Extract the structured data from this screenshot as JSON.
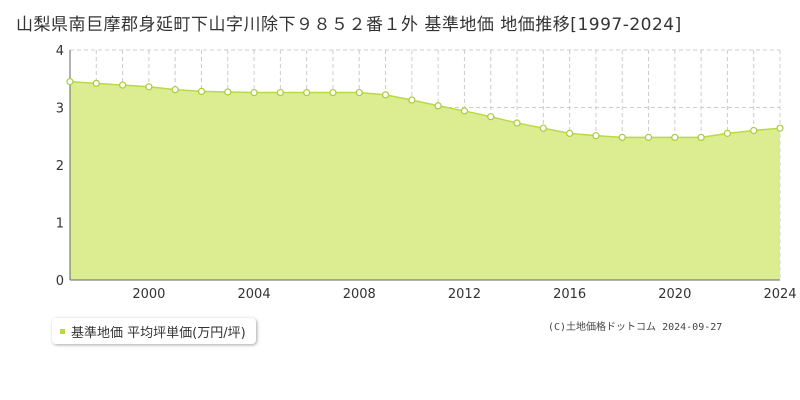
{
  "header": {
    "title": "山梨県南巨摩郡身延町下山字川除下９８５２番１外 基準地価 地価推移[1997-2024]"
  },
  "legend": {
    "label": "基準地価 平均坪単価(万円/坪)"
  },
  "credit": {
    "text": "(C)土地価格ドットコム 2024-09-27"
  },
  "colors": {
    "fill": "#dcec91",
    "line": "#b8d94a",
    "marker_stroke": "#a8cc3c",
    "marker_fill": "#ffffff",
    "grid": "#cccccc",
    "axis": "#666666"
  },
  "chart_data": {
    "type": "area",
    "title": "山梨県南巨摩郡身延町下山字川除下９８５２番１外 基準地価 地価推移[1997-2024]",
    "xlabel": "",
    "ylabel": "",
    "x_range": [
      1997,
      2024
    ],
    "ylim": [
      0,
      4
    ],
    "y_ticks": [
      0,
      1,
      2,
      3,
      4
    ],
    "x_ticks": [
      2000,
      2004,
      2008,
      2012,
      2016,
      2020,
      2024
    ],
    "grid": true,
    "legend_position": "bottom-left",
    "series": [
      {
        "name": "基準地価 平均坪単価(万円/坪)",
        "x": [
          1997,
          1998,
          1999,
          2000,
          2001,
          2002,
          2003,
          2004,
          2005,
          2006,
          2007,
          2008,
          2009,
          2010,
          2011,
          2012,
          2013,
          2014,
          2015,
          2016,
          2017,
          2018,
          2019,
          2020,
          2021,
          2022,
          2023,
          2024
        ],
        "values": [
          3.45,
          3.42,
          3.39,
          3.36,
          3.31,
          3.28,
          3.27,
          3.26,
          3.26,
          3.26,
          3.26,
          3.26,
          3.22,
          3.13,
          3.03,
          2.94,
          2.84,
          2.73,
          2.64,
          2.55,
          2.51,
          2.48,
          2.48,
          2.48,
          2.48,
          2.55,
          2.6,
          2.64
        ]
      }
    ]
  }
}
